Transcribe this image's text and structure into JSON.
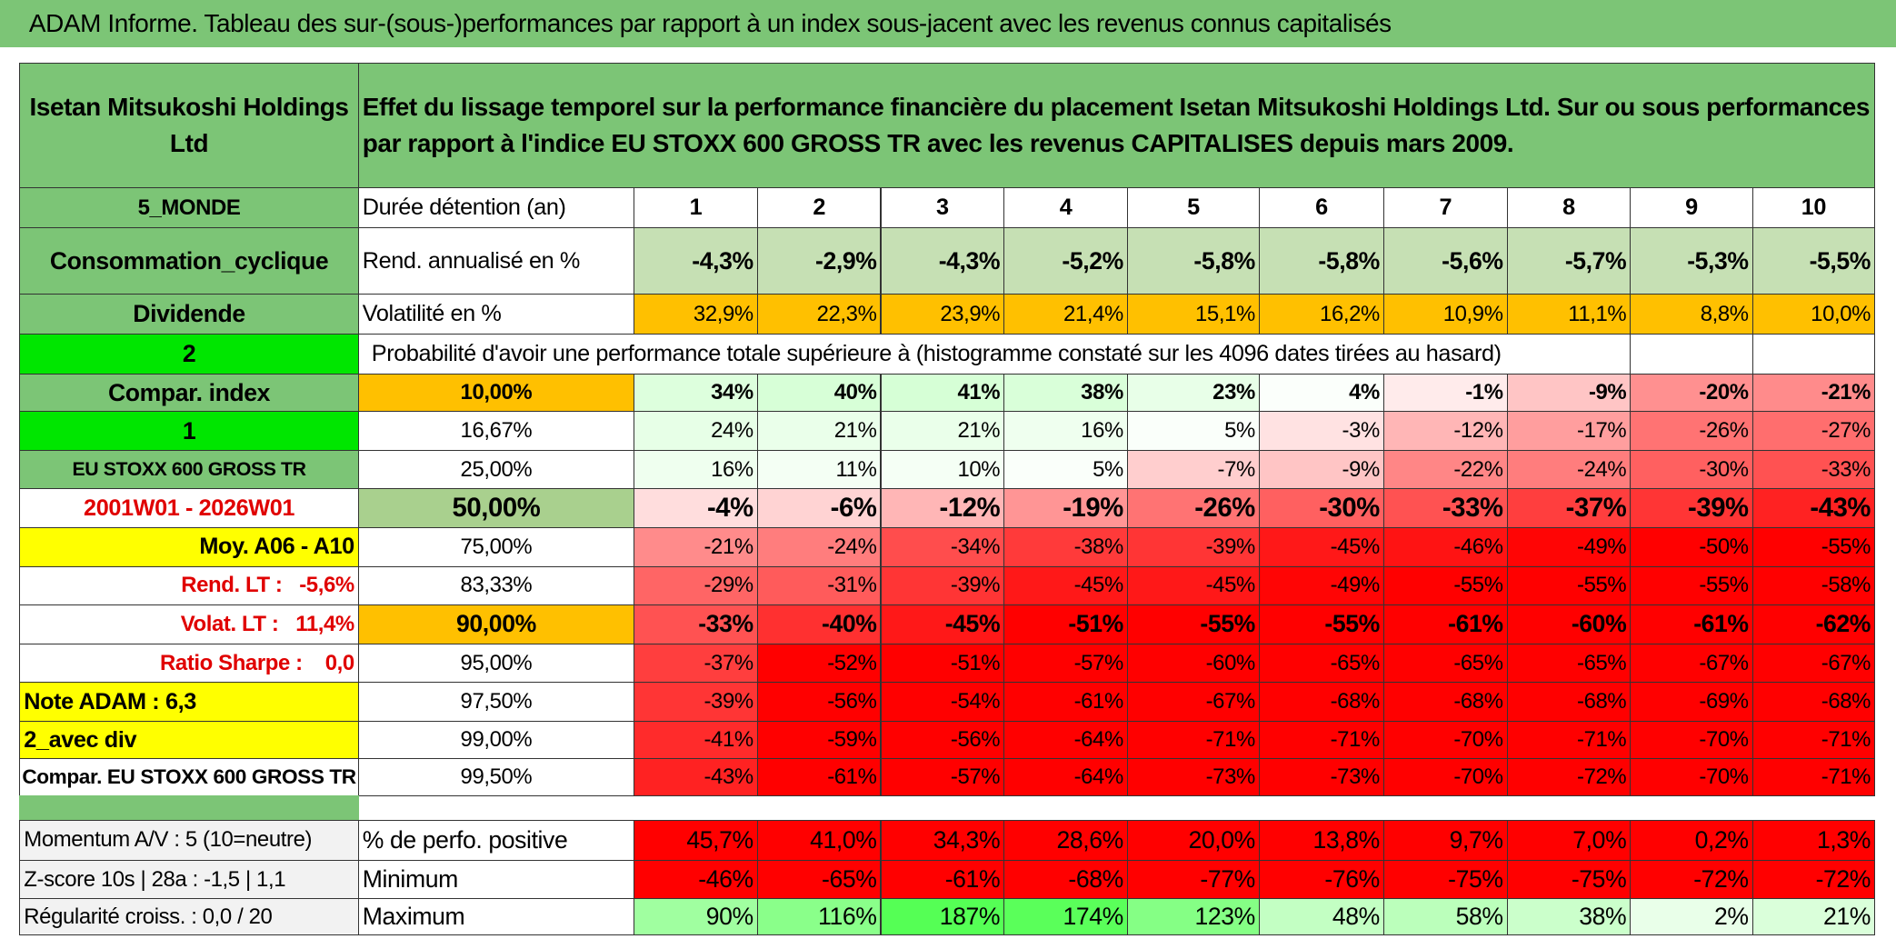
{
  "header": {
    "title": "ADAM Informe. Tableau des sur-(sous-)performances par rapport à un index sous-jacent avec les revenus connus capitalisés"
  },
  "table": {
    "heading": {
      "name": "Isetan Mitsukoshi Holdings Ltd",
      "description": "Effet du lissage temporel sur la performance financière du placement Isetan Mitsukoshi Holdings Ltd. Sur ou sous performances par rapport à l'indice EU STOXX 600 GROSS TR avec les revenus CAPITALISES depuis mars 2009."
    },
    "sidebar": [
      "5_MONDE",
      "Consommation_cyclique",
      "Dividende",
      "2",
      "Compar. index",
      "1",
      "EU STOXX 600 GROSS TR",
      "2001W01 - 2026W01",
      "Moy. A06 - A10",
      "Rend. LT :   -5,6%",
      "Volat. LT :   11,4%",
      "Ratio Sharpe :    0,0",
      "Note ADAM : 6,3",
      "2_avec div",
      "Compar. EU STOXX 600 GROSS TR"
    ],
    "duration_label": "Durée détention (an)",
    "durations": [
      "1",
      "2",
      "3",
      "4",
      "5",
      "6",
      "7",
      "8",
      "9",
      "10"
    ],
    "return_label": "Rend. annualisé en %",
    "returns": [
      "-4,3%",
      "-2,9%",
      "-4,3%",
      "-5,2%",
      "-5,8%",
      "-5,8%",
      "-5,6%",
      "-5,7%",
      "-5,3%",
      "-5,5%"
    ],
    "volatility_label": "Volatilité en %",
    "volatility": [
      "32,9%",
      "22,3%",
      "23,9%",
      "21,4%",
      "15,1%",
      "16,2%",
      "10,9%",
      "11,1%",
      "8,8%",
      "10,0%"
    ],
    "probability_title": "Probabilité d'avoir une performance totale supérieure à (histogramme constaté sur les 4096 dates tirées au hasard)",
    "percentile_rows": [
      {
        "level": "10,00%",
        "values": [
          "34%",
          "40%",
          "41%",
          "38%",
          "23%",
          "4%",
          "-1%",
          "-9%",
          "-20%",
          "-21%"
        ]
      },
      {
        "level": "16,67%",
        "values": [
          "24%",
          "21%",
          "21%",
          "16%",
          "5%",
          "-3%",
          "-12%",
          "-17%",
          "-26%",
          "-27%"
        ]
      },
      {
        "level": "25,00%",
        "values": [
          "16%",
          "11%",
          "10%",
          "5%",
          "-7%",
          "-9%",
          "-22%",
          "-24%",
          "-30%",
          "-33%"
        ]
      },
      {
        "level": "50,00%",
        "values": [
          "-4%",
          "-6%",
          "-12%",
          "-19%",
          "-26%",
          "-30%",
          "-33%",
          "-37%",
          "-39%",
          "-43%"
        ]
      },
      {
        "level": "75,00%",
        "values": [
          "-21%",
          "-24%",
          "-34%",
          "-38%",
          "-39%",
          "-45%",
          "-46%",
          "-49%",
          "-50%",
          "-55%"
        ]
      },
      {
        "level": "83,33%",
        "values": [
          "-29%",
          "-31%",
          "-39%",
          "-45%",
          "-45%",
          "-49%",
          "-55%",
          "-55%",
          "-55%",
          "-58%"
        ]
      },
      {
        "level": "90,00%",
        "values": [
          "-33%",
          "-40%",
          "-45%",
          "-51%",
          "-55%",
          "-55%",
          "-61%",
          "-60%",
          "-61%",
          "-62%"
        ]
      },
      {
        "level": "95,00%",
        "values": [
          "-37%",
          "-52%",
          "-51%",
          "-57%",
          "-60%",
          "-65%",
          "-65%",
          "-65%",
          "-67%",
          "-67%"
        ]
      },
      {
        "level": "97,50%",
        "values": [
          "-39%",
          "-56%",
          "-54%",
          "-61%",
          "-67%",
          "-68%",
          "-68%",
          "-68%",
          "-69%",
          "-68%"
        ]
      },
      {
        "level": "99,00%",
        "values": [
          "-41%",
          "-59%",
          "-56%",
          "-64%",
          "-71%",
          "-71%",
          "-70%",
          "-71%",
          "-70%",
          "-71%"
        ]
      },
      {
        "level": "99,50%",
        "values": [
          "-43%",
          "-61%",
          "-57%",
          "-64%",
          "-73%",
          "-73%",
          "-70%",
          "-72%",
          "-70%",
          "-71%"
        ]
      }
    ]
  },
  "stats": [
    {
      "label": "Momentum A/V : 5 (10=neutre)",
      "metric": "% de perfo. positive",
      "values": [
        "45,7%",
        "41,0%",
        "34,3%",
        "28,6%",
        "20,0%",
        "13,8%",
        "9,7%",
        "7,0%",
        "0,2%",
        "1,3%"
      ]
    },
    {
      "label": "Z-score 10s | 28a : -1,5 | 1,1",
      "metric": "Minimum",
      "values": [
        "-46%",
        "-65%",
        "-61%",
        "-68%",
        "-77%",
        "-76%",
        "-75%",
        "-75%",
        "-72%",
        "-72%"
      ]
    },
    {
      "label": "Régularité croiss. : 0,0 / 20",
      "metric": "Maximum",
      "values": [
        "90%",
        "116%",
        "187%",
        "174%",
        "123%",
        "48%",
        "58%",
        "38%",
        "2%",
        "21%"
      ]
    }
  ]
}
